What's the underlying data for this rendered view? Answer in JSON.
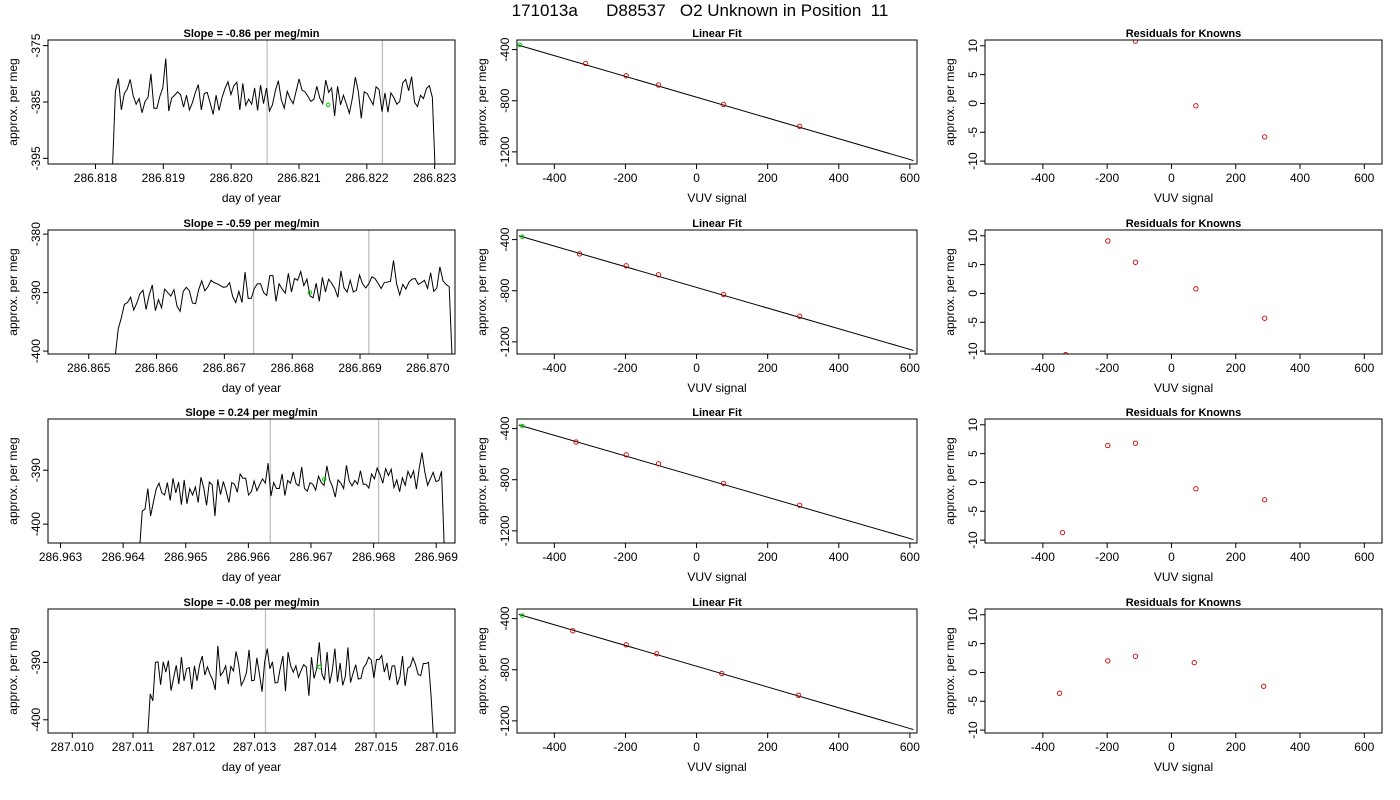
{
  "figure": {
    "title": "171013a      D88537   O2 Unknown in Position  11"
  },
  "chart_data": [
    {
      "type": "line",
      "title": "Slope =  -0.86  per meg/min",
      "xlabel": "day of year",
      "ylabel": "approx. per meg",
      "xlim": [
        286.8173,
        286.8233
      ],
      "ylim": [
        -396,
        -374
      ],
      "xticks": [
        "286.818",
        "286.819",
        "286.820",
        "286.821",
        "286.822",
        "286.823"
      ],
      "yticks": [
        "-375",
        "-385",
        "-395"
      ],
      "vlines": [
        286.82053,
        286.82223
      ],
      "highlight": {
        "x": 286.82143,
        "y": -385.5
      },
      "series": [
        {
          "x_start": 286.81825,
          "x_end": 286.82301,
          "y": [
            -397.0,
            -383.1,
            -380.8,
            -386.4,
            -383.5,
            -382.7,
            -381.0,
            -383.9,
            -385.4,
            -384.4,
            -386.9,
            -384.9,
            -384.2,
            -380.0,
            -386.1,
            -386.1,
            -384.0,
            -382.5,
            -377.3,
            -386.6,
            -384.3,
            -383.8,
            -383.2,
            -383.7,
            -385.9,
            -383.8,
            -386.4,
            -385.1,
            -383.3,
            -381.9,
            -386.4,
            -383.5,
            -383.3,
            -385.2,
            -387.2,
            -383.8,
            -386.5,
            -384.2,
            -382.6,
            -381.4,
            -383.7,
            -382.1,
            -381.5,
            -386.4,
            -381.7,
            -385.6,
            -384.5,
            -385.4,
            -382.5,
            -386.5,
            -382.0,
            -385.3,
            -382.5,
            -386.6,
            -385.5,
            -383.0,
            -381.2,
            -384.6,
            -386.1,
            -383.1,
            -384.4,
            -385.3,
            -383.1,
            -380.9,
            -382.9,
            -383.2,
            -384.0,
            -384.9,
            -384.5,
            -382.2,
            -384.3,
            -385.3,
            -381.1,
            -383.3,
            -382.5,
            -387.5,
            -382.2,
            -385.5,
            -383.8,
            -385.4,
            -387.0,
            -384.3,
            -380.6,
            -383.1,
            -387.9,
            -383.2,
            -383.5,
            -384.5,
            -385.5,
            -382.3,
            -382.8,
            -386.7,
            -383.4,
            -386.8,
            -383.4,
            -384.2,
            -385.4,
            -384.9,
            -381.6,
            -381.0,
            -383.0,
            -380.5,
            -385.1,
            -385.8,
            -383.8,
            -384.4,
            -382.6,
            -382.1,
            -384.2,
            -398.0
          ]
        }
      ]
    },
    {
      "type": "scatter",
      "title": "Linear Fit",
      "xlabel": "VUV signal",
      "ylabel": "approx. per meg",
      "xlim": [
        -505,
        620
      ],
      "ylim": [
        -1295,
        -325
      ],
      "xticks": [
        -400,
        -200,
        0,
        200,
        400,
        600
      ],
      "yticks": [
        -400,
        -800,
        -1200
      ],
      "fit_line": {
        "x": [
          -500,
          610
        ],
        "y": [
          -366,
          -1268
        ]
      },
      "highlight": {
        "x": -497,
        "y": -364
      },
      "points": {
        "x": [
          -312,
          -198,
          -107,
          76,
          290
        ],
        "y": [
          -509,
          -605,
          -677,
          -830,
          -1000
        ]
      }
    },
    {
      "type": "scatter",
      "title": "Residuals for Knowns",
      "xlabel": "VUV signal",
      "ylabel": "approx. per meg",
      "xlim": [
        -580,
        655
      ],
      "ylim": [
        -10.5,
        11
      ],
      "xticks": [
        -400,
        -200,
        0,
        200,
        400,
        600
      ],
      "yticks": [
        10,
        5,
        0,
        -5,
        -10
      ],
      "points": {
        "x": [
          -112,
          76,
          290
        ],
        "y": [
          10.8,
          -0.4,
          -5.8
        ]
      }
    },
    {
      "type": "line",
      "title": "Slope =  -0.59  per meg/min",
      "xlabel": "day of year",
      "ylabel": "approx. per meg",
      "xlim": [
        286.8644,
        286.8704
      ],
      "ylim": [
        -400.5,
        -379.3
      ],
      "xticks": [
        "286.865",
        "286.866",
        "286.867",
        "286.868",
        "286.869",
        "286.870"
      ],
      "yticks": [
        "-380",
        "-390",
        "-400"
      ],
      "vlines": [
        286.86743,
        286.86913
      ],
      "highlight": {
        "x": 286.86826,
        "y": -390.0
      },
      "series": [
        {
          "x_start": 286.86539,
          "x_end": 286.87036,
          "y": [
            -401.0,
            -396.2,
            -394.3,
            -392.0,
            -391.7,
            -390.8,
            -393.0,
            -391.8,
            -390.2,
            -389.6,
            -392.9,
            -390.4,
            -388.7,
            -393.1,
            -391.2,
            -392.6,
            -389.4,
            -390.0,
            -390.6,
            -389.5,
            -392.3,
            -393.2,
            -389.8,
            -389.1,
            -389.7,
            -391.8,
            -391.9,
            -389.5,
            -388.0,
            -389.7,
            -389.0,
            -387.9,
            -388.3,
            -388.5,
            -388.8,
            -389.1,
            -389.0,
            -388.3,
            -390.7,
            -391.7,
            -389.8,
            -391.7,
            -386.5,
            -391.0,
            -391.0,
            -389.3,
            -388.5,
            -388.5,
            -390.0,
            -390.5,
            -387.1,
            -387.1,
            -391.5,
            -388.5,
            -389.4,
            -390.1,
            -386.7,
            -389.9,
            -387.6,
            -387.9,
            -386.4,
            -388.8,
            -387.7,
            -390.6,
            -390.9,
            -388.4,
            -391.5,
            -387.4,
            -389.9,
            -387.7,
            -388.4,
            -389.3,
            -390.8,
            -386.3,
            -389.2,
            -389.9,
            -387.9,
            -389.9,
            -389.6,
            -387.0,
            -388.5,
            -389.2,
            -388.5,
            -387.3,
            -387.6,
            -388.4,
            -389.3,
            -388.3,
            -388.2,
            -388.1,
            -384.5,
            -388.5,
            -390.4,
            -388.6,
            -389.4,
            -388.2,
            -387.7,
            -387.6,
            -388.6,
            -388.3,
            -387.9,
            -389.3,
            -386.6,
            -389.8,
            -389.2,
            -385.6,
            -388.0,
            -388.6,
            -389.0,
            -402.0
          ]
        }
      ]
    },
    {
      "type": "scatter",
      "title": "Linear Fit",
      "xlabel": "VUV signal",
      "ylabel": "approx. per meg",
      "xlim": [
        -505,
        620
      ],
      "ylim": [
        -1295,
        -325
      ],
      "xticks": [
        -400,
        -200,
        0,
        200,
        400,
        600
      ],
      "yticks": [
        -400,
        -800,
        -1200
      ],
      "fit_line": {
        "x": [
          -500,
          610
        ],
        "y": [
          -370,
          -1267
        ]
      },
      "highlight": {
        "x": -490,
        "y": -378
      },
      "points": {
        "x": [
          -329,
          -198,
          -107,
          76,
          290
        ],
        "y": [
          -512,
          -605,
          -675,
          -830,
          -1000
        ]
      }
    },
    {
      "type": "scatter",
      "title": "Residuals for Knowns",
      "xlabel": "VUV signal",
      "ylabel": "approx. per meg",
      "xlim": [
        -580,
        655
      ],
      "ylim": [
        -10.5,
        11
      ],
      "xticks": [
        -400,
        -200,
        0,
        200,
        400,
        600
      ],
      "yticks": [
        10,
        5,
        0,
        -5,
        -10
      ],
      "points": {
        "x": [
          -329,
          -198,
          -112,
          76,
          290
        ],
        "y": [
          -10.6,
          9.1,
          5.4,
          0.8,
          -4.3
        ]
      }
    },
    {
      "type": "line",
      "title": "Slope =  0.24  per meg/min",
      "xlabel": "day of year",
      "ylabel": "approx. per meg",
      "xlim": [
        286.9628,
        286.9693
      ],
      "ylim": [
        -403.5,
        -380.5
      ],
      "xticks": [
        "286.963",
        "286.964",
        "286.965",
        "286.966",
        "286.967",
        "286.968",
        "286.969"
      ],
      "yticks": [
        "-390",
        "-400"
      ],
      "vlines": [
        286.96635,
        286.96808
      ],
      "highlight": {
        "x": 286.96721,
        "y": -391.7
      },
      "series": [
        {
          "x_start": 286.96426,
          "x_end": 286.96913,
          "y": [
            -405.0,
            -397.6,
            -397.2,
            -393.4,
            -398.5,
            -395.9,
            -393.5,
            -392.4,
            -394.2,
            -394.6,
            -392.3,
            -395.6,
            -391.5,
            -394.2,
            -392.2,
            -396.4,
            -391.8,
            -396.2,
            -393.4,
            -394.6,
            -393.1,
            -396.0,
            -391.3,
            -393.3,
            -396.5,
            -392.2,
            -392.7,
            -398.5,
            -391.7,
            -394.5,
            -392.1,
            -393.9,
            -396.0,
            -392.3,
            -392.6,
            -394.1,
            -390.7,
            -391.5,
            -391.5,
            -394.6,
            -394.0,
            -392.0,
            -393.8,
            -392.7,
            -391.6,
            -392.4,
            -388.7,
            -394.8,
            -392.3,
            -393.4,
            -393.4,
            -390.7,
            -394.7,
            -391.9,
            -392.4,
            -390.3,
            -392.5,
            -392.9,
            -389.4,
            -393.4,
            -393.9,
            -392.3,
            -392.6,
            -393.7,
            -391.1,
            -392.3,
            -392.8,
            -389.2,
            -391.8,
            -393.0,
            -395.0,
            -391.8,
            -392.4,
            -393.4,
            -389.1,
            -392.0,
            -392.9,
            -391.9,
            -392.6,
            -390.1,
            -392.6,
            -392.6,
            -393.3,
            -390.7,
            -391.6,
            -389.6,
            -390.8,
            -392.4,
            -389.7,
            -391.0,
            -389.8,
            -393.2,
            -391.8,
            -394.0,
            -391.4,
            -392.8,
            -390.2,
            -391.4,
            -390.1,
            -393.5,
            -389.7,
            -386.7,
            -390.3,
            -392.8,
            -391.6,
            -390.4,
            -392.1,
            -391.9,
            -390.2,
            -405.0
          ]
        }
      ]
    },
    {
      "type": "scatter",
      "title": "Linear Fit",
      "xlabel": "VUV signal",
      "ylabel": "approx. per meg",
      "xlim": [
        -505,
        620
      ],
      "ylim": [
        -1295,
        -325
      ],
      "xticks": [
        -400,
        -200,
        0,
        200,
        400,
        600
      ],
      "yticks": [
        -400,
        -800,
        -1200
      ],
      "fit_line": {
        "x": [
          -500,
          610
        ],
        "y": [
          -372,
          -1268
        ]
      },
      "highlight": {
        "x": -490,
        "y": -380
      },
      "points": {
        "x": [
          -339,
          -198,
          -107,
          76,
          290
        ],
        "y": [
          -505,
          -605,
          -675,
          -830,
          -1000
        ]
      }
    },
    {
      "type": "scatter",
      "title": "Residuals for Knowns",
      "xlabel": "VUV signal",
      "ylabel": "approx. per meg",
      "xlim": [
        -580,
        655
      ],
      "ylim": [
        -10.5,
        11
      ],
      "xticks": [
        -400,
        -200,
        0,
        200,
        400,
        600
      ],
      "yticks": [
        10,
        5,
        0,
        -5,
        -10
      ],
      "points": {
        "x": [
          -339,
          -198,
          -112,
          76,
          290
        ],
        "y": [
          -8.7,
          6.4,
          6.8,
          -1.1,
          -3.0
        ]
      }
    },
    {
      "type": "line",
      "title": "Slope =  -0.08  per meg/min",
      "xlabel": "day of year",
      "ylabel": "approx. per meg",
      "xlim": [
        287.0096,
        287.0163
      ],
      "ylim": [
        -402.3,
        -380.7
      ],
      "xticks": [
        "287.010",
        "287.011",
        "287.012",
        "287.013",
        "287.014",
        "287.015",
        "287.016"
      ],
      "yticks": [
        "-390",
        "-400"
      ],
      "vlines": [
        287.01318,
        287.01497
      ],
      "highlight": {
        "x": 287.01407,
        "y": -390.8
      },
      "series": [
        {
          "x_start": 287.01124,
          "x_end": 287.01595,
          "y": [
            -403.0,
            -395.5,
            -396.7,
            -390.0,
            -389.9,
            -393.9,
            -389.9,
            -391.7,
            -389.7,
            -394.9,
            -392.7,
            -390.5,
            -393.8,
            -389.1,
            -393.2,
            -391.1,
            -390.9,
            -394.7,
            -390.6,
            -393.2,
            -390.4,
            -388.9,
            -392.2,
            -390.8,
            -392.1,
            -393.0,
            -394.8,
            -387.1,
            -392.3,
            -391.7,
            -390.6,
            -393.8,
            -390.7,
            -391.5,
            -388.1,
            -390.3,
            -394.0,
            -393.1,
            -391.8,
            -387.8,
            -393.2,
            -393.1,
            -389.2,
            -392.1,
            -395.1,
            -389.9,
            -387.6,
            -391.1,
            -389.9,
            -393.6,
            -393.5,
            -391.0,
            -388.9,
            -395.0,
            -388.2,
            -390.6,
            -391.7,
            -390.6,
            -392.6,
            -391.4,
            -390.4,
            -390.8,
            -395.8,
            -389.1,
            -392.8,
            -391.1,
            -386.5,
            -392.0,
            -393.1,
            -388.2,
            -393.7,
            -391.4,
            -387.6,
            -393.4,
            -390.1,
            -394.0,
            -392.5,
            -387.4,
            -393.5,
            -391.9,
            -390.4,
            -392.9,
            -392.8,
            -390.9,
            -390.3,
            -389.1,
            -389.6,
            -392.7,
            -389.5,
            -389.5,
            -388.8,
            -391.7,
            -390.1,
            -393.1,
            -390.6,
            -390.6,
            -393.9,
            -392.5,
            -388.9,
            -394.1,
            -391.0,
            -390.7,
            -389.2,
            -390.4,
            -392.1,
            -392.3,
            -390.2,
            -390.2,
            -390.0,
            -396.0,
            -404.0
          ]
        }
      ]
    },
    {
      "type": "scatter",
      "title": "Linear Fit",
      "xlabel": "VUV signal",
      "ylabel": "approx. per meg",
      "xlim": [
        -505,
        620
      ],
      "ylim": [
        -1295,
        -325
      ],
      "xticks": [
        -400,
        -200,
        0,
        200,
        400,
        600
      ],
      "yticks": [
        -400,
        -800,
        -1200
      ],
      "fit_line": {
        "x": [
          -500,
          610
        ],
        "y": [
          -367,
          -1268
        ]
      },
      "highlight": {
        "x": -490,
        "y": -376
      },
      "points": {
        "x": [
          -348,
          -198,
          -112,
          71,
          287
        ],
        "y": [
          -495,
          -605,
          -675,
          -830,
          -1000
        ]
      }
    },
    {
      "type": "scatter",
      "title": "Residuals for Knowns",
      "xlabel": "VUV signal",
      "ylabel": "approx. per meg",
      "xlim": [
        -580,
        655
      ],
      "ylim": [
        -10.5,
        11
      ],
      "xticks": [
        -400,
        -200,
        0,
        200,
        400,
        600
      ],
      "yticks": [
        10,
        5,
        0,
        -5,
        -10
      ],
      "points": {
        "x": [
          -348,
          -198,
          -112,
          71,
          287
        ],
        "y": [
          -3.6,
          2.0,
          2.8,
          1.7,
          -2.4
        ]
      }
    }
  ],
  "colors": {
    "line": "#000000",
    "marker": "#cc0000",
    "highlight": "#00cc00",
    "vline": "#bfbfbf"
  }
}
